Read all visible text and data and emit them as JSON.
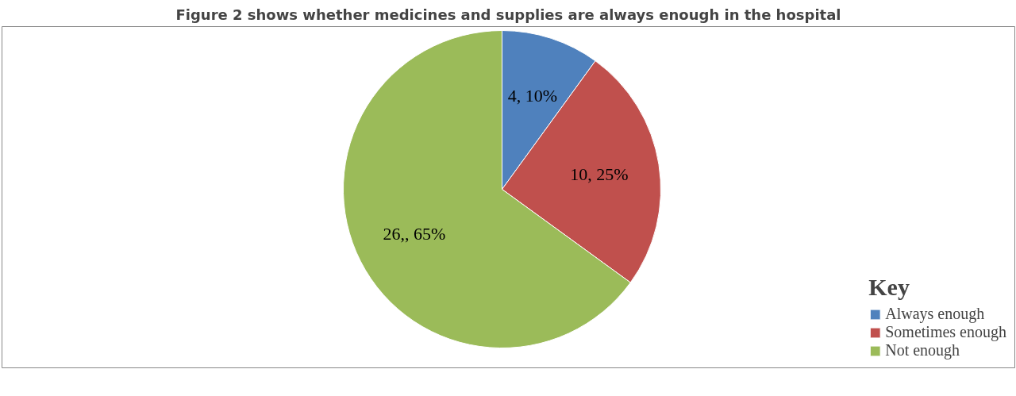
{
  "chart_data": {
    "type": "pie",
    "title": "Figure 2 shows whether medicines and supplies are always enough in the hospital",
    "legend_title": "Key",
    "legend": "bottom right",
    "categories": [
      "Always enough",
      "Sometimes enough",
      "Not enough"
    ],
    "values": [
      10,
      25,
      65
    ],
    "value_labels": [
      "4, 10%",
      "10, 25%",
      "26,, 65%"
    ],
    "colors": [
      "#4f81bd",
      "#c0504d",
      "#9bbb59"
    ]
  }
}
